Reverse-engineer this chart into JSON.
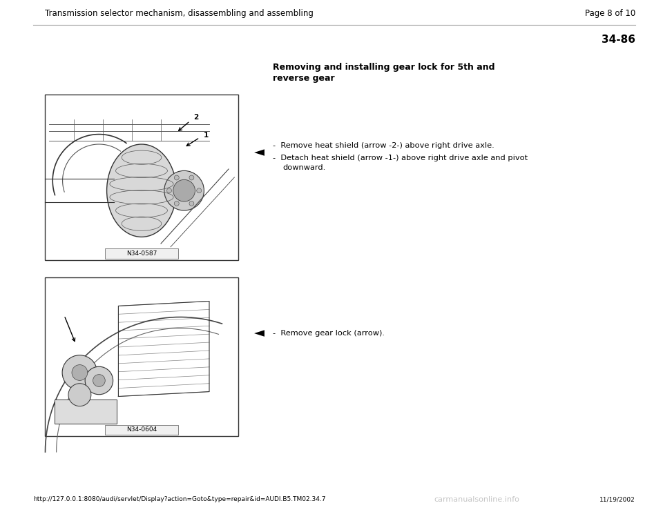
{
  "background_color": "#ffffff",
  "page_width": 9.6,
  "page_height": 7.42,
  "header_text": "Transmission selector mechanism, disassembling and assembling",
  "page_label": "Page 8 of 10",
  "section_number": "34-86",
  "section_title_line1": "Removing and installing gear lock for 5th and",
  "section_title_line2": "reverse gear",
  "bullet_symbol": "◄",
  "instr1_line1": "-  Remove heat shield (arrow -2-) above right drive axle.",
  "instr1_line2": "-  Detach heat shield (arrow -1-) above right drive axle and pivot",
  "instr1_line3": "   downward.",
  "instr2_line1": "-  Remove gear lock (arrow).",
  "image1_label": "N34-0587",
  "image2_label": "N34-0604",
  "footer_url": "http://127.0.0.1:8080/audi/servlet/Display?action=Goto&type=repair&id=AUDI.B5.TM02.34.7",
  "footer_date": "11/19/2002",
  "footer_watermark": "carmanualsonline.info",
  "header_font_size": 8.5,
  "title_font_size": 9.0,
  "body_font_size": 8.2,
  "footer_font_size": 6.5,
  "section_num_font_size": 11,
  "text_color": "#000000",
  "gray_line": "#999999",
  "img_border": "#333333",
  "img_bg": "#f5f5f5",
  "label_bg": "#f0f0f0"
}
